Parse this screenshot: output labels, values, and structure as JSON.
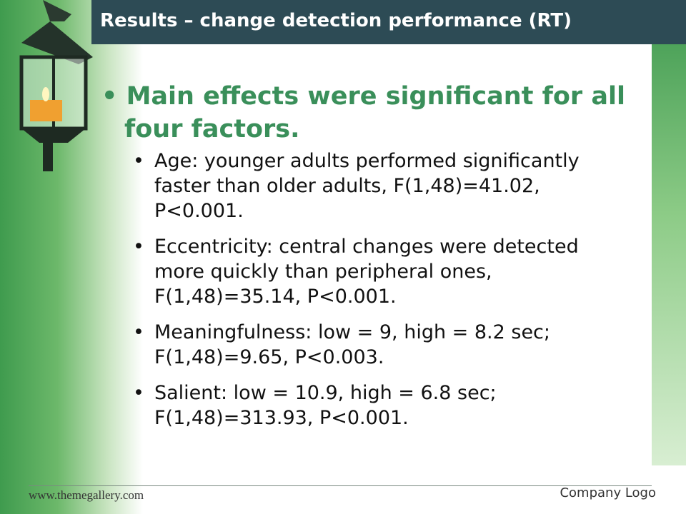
{
  "header": {
    "title": "Results – change detection performance (RT)"
  },
  "body": {
    "main_bullet": "Main effects were significant for all four factors.",
    "sub_bullets": [
      "Age: younger adults performed significantly faster than older adults, F(1,48)=41.02, P<0.001.",
      "Eccentricity: central changes were detected more quickly than peripheral ones, F(1,48)=35.14, P<0.001.",
      "Meaningfulness: low = 9, high = 8.2 sec; F(1,48)=9.65, P<0.003.",
      "Salient: low = 10.9, high = 6.8 sec; F(1,48)=313.93, P<0.001."
    ]
  },
  "footer": {
    "website": "www.themegallery.com",
    "logo": "Company Logo"
  }
}
